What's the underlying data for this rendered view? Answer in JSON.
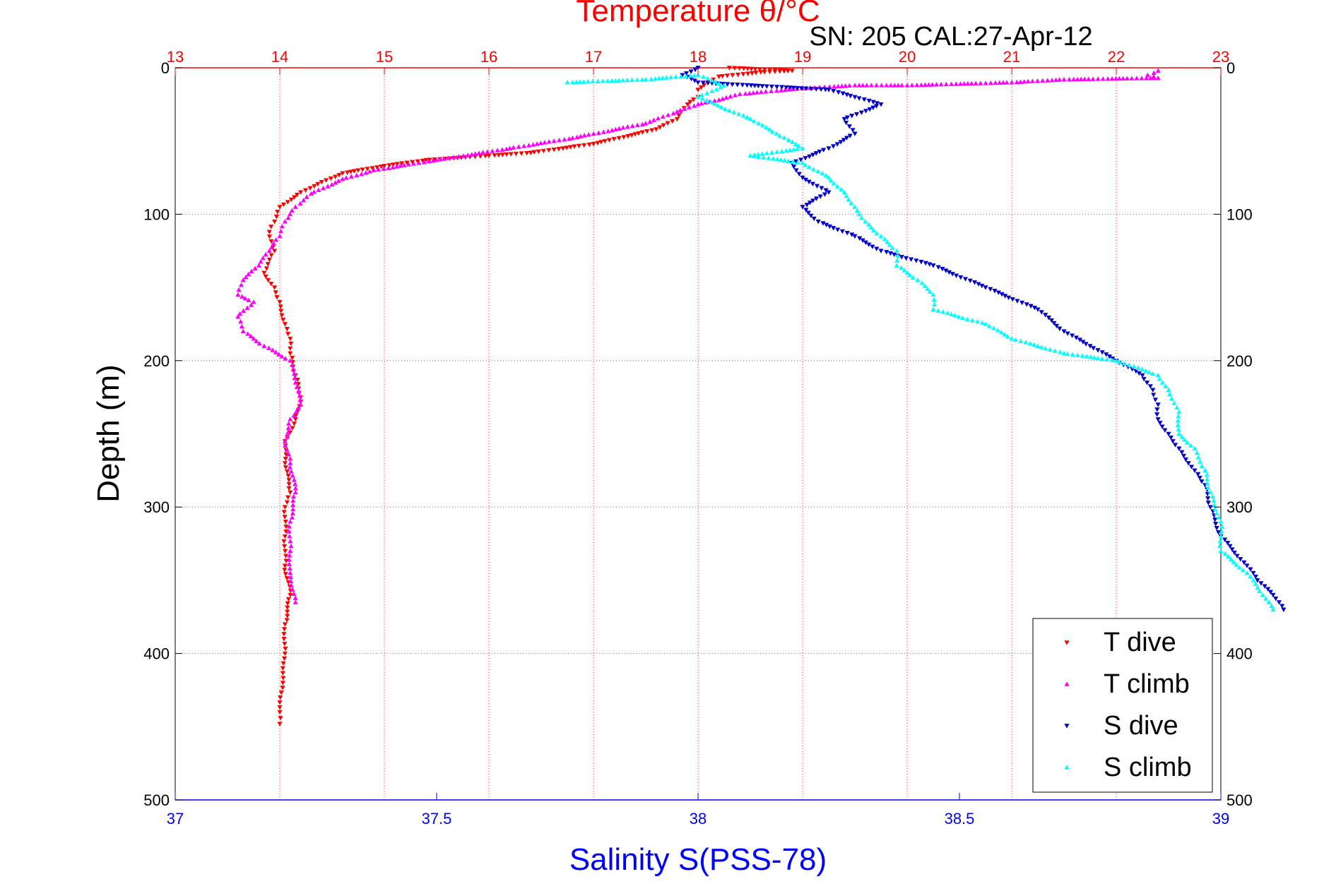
{
  "chart_data": {
    "type": "scatter",
    "title": "Temperature θ/°C",
    "subtitle": "SN: 205  CAL:27-Apr-12",
    "ylabel": "Depth (m)",
    "xlabel": "Salinity S(PSS-78)",
    "x_top_label": "Temperature θ/°C",
    "ylim": [
      0,
      500
    ],
    "y_reversed": true,
    "temp_lim": [
      13,
      23
    ],
    "sal_lim": [
      37,
      39
    ],
    "y_ticks": [
      "0",
      "100",
      "200",
      "300",
      "400",
      "500"
    ],
    "temp_ticks": [
      "13",
      "14",
      "15",
      "16",
      "17",
      "18",
      "19",
      "20",
      "21",
      "22",
      "23"
    ],
    "sal_ticks": [
      "37",
      "37.5",
      "38",
      "38.5",
      "39"
    ],
    "legend_position": "bottom-right",
    "colors": {
      "t_dive": "#ff0000",
      "t_climb": "#ff00ff",
      "s_dive": "#0000cc",
      "s_climb": "#00ffff",
      "temp_axis": "#ff0000",
      "sal_axis": "#0000ff"
    },
    "series": [
      {
        "name": "T dive",
        "axis": "temperature",
        "marker": "triangle-down",
        "color": "#ff0000",
        "points": [
          [
            18.3,
            0
          ],
          [
            18.9,
            2
          ],
          [
            18.6,
            3
          ],
          [
            18.2,
            6
          ],
          [
            18.1,
            10
          ],
          [
            18.0,
            15
          ],
          [
            18.0,
            20
          ],
          [
            17.9,
            25
          ],
          [
            17.8,
            35
          ],
          [
            17.6,
            42
          ],
          [
            17.0,
            52
          ],
          [
            16.4,
            58
          ],
          [
            16.0,
            60
          ],
          [
            15.4,
            63
          ],
          [
            15.0,
            67
          ],
          [
            14.6,
            72
          ],
          [
            14.4,
            78
          ],
          [
            14.2,
            85
          ],
          [
            14.0,
            95
          ],
          [
            13.95,
            105
          ],
          [
            13.9,
            112
          ],
          [
            13.95,
            125
          ],
          [
            13.85,
            140
          ],
          [
            13.95,
            150
          ],
          [
            14.0,
            160
          ],
          [
            14.05,
            175
          ],
          [
            14.1,
            185
          ],
          [
            14.1,
            195
          ],
          [
            14.15,
            210
          ],
          [
            14.2,
            225
          ],
          [
            14.15,
            240
          ],
          [
            14.05,
            255
          ],
          [
            14.05,
            270
          ],
          [
            14.1,
            290
          ],
          [
            14.05,
            300
          ],
          [
            14.05,
            320
          ],
          [
            14.05,
            340
          ],
          [
            14.1,
            360
          ],
          [
            14.05,
            380
          ],
          [
            14.05,
            400
          ],
          [
            14.03,
            420
          ],
          [
            14.0,
            440
          ],
          [
            14.0,
            448
          ]
        ]
      },
      {
        "name": "T climb",
        "axis": "temperature",
        "marker": "triangle-up",
        "color": "#ff00ff",
        "points": [
          [
            22.4,
            2
          ],
          [
            22.3,
            5
          ],
          [
            22.4,
            7
          ],
          [
            21.5,
            8
          ],
          [
            21.0,
            10
          ],
          [
            20.0,
            12
          ],
          [
            19.5,
            12
          ],
          [
            19.0,
            14
          ],
          [
            18.7,
            16
          ],
          [
            18.4,
            18
          ],
          [
            18.2,
            22
          ],
          [
            18.0,
            25
          ],
          [
            17.8,
            30
          ],
          [
            17.5,
            38
          ],
          [
            16.8,
            48
          ],
          [
            16.2,
            55
          ],
          [
            15.5,
            63
          ],
          [
            14.9,
            70
          ],
          [
            14.6,
            76
          ],
          [
            14.3,
            86
          ],
          [
            14.15,
            95
          ],
          [
            14.05,
            105
          ],
          [
            14.0,
            115
          ],
          [
            13.9,
            125
          ],
          [
            13.8,
            135
          ],
          [
            13.65,
            145
          ],
          [
            13.6,
            155
          ],
          [
            13.75,
            160
          ],
          [
            13.6,
            170
          ],
          [
            13.65,
            180
          ],
          [
            13.85,
            190
          ],
          [
            14.1,
            200
          ],
          [
            14.15,
            215
          ],
          [
            14.2,
            230
          ],
          [
            14.1,
            240
          ],
          [
            14.05,
            255
          ],
          [
            14.1,
            270
          ],
          [
            14.15,
            290
          ],
          [
            14.1,
            310
          ],
          [
            14.1,
            330
          ],
          [
            14.1,
            345
          ],
          [
            14.15,
            365
          ]
        ]
      },
      {
        "name": "S dive",
        "axis": "salinity",
        "marker": "triangle-down",
        "color": "#0000cc",
        "points": [
          [
            38.0,
            0
          ],
          [
            37.97,
            5
          ],
          [
            38.0,
            10
          ],
          [
            38.25,
            15
          ],
          [
            38.3,
            20
          ],
          [
            38.35,
            25
          ],
          [
            38.28,
            35
          ],
          [
            38.3,
            45
          ],
          [
            38.25,
            55
          ],
          [
            38.18,
            65
          ],
          [
            38.2,
            75
          ],
          [
            38.25,
            85
          ],
          [
            38.2,
            95
          ],
          [
            38.23,
            105
          ],
          [
            38.3,
            115
          ],
          [
            38.35,
            125
          ],
          [
            38.45,
            135
          ],
          [
            38.55,
            150
          ],
          [
            38.65,
            165
          ],
          [
            38.7,
            180
          ],
          [
            38.75,
            190
          ],
          [
            38.8,
            200
          ],
          [
            38.85,
            210
          ],
          [
            38.87,
            220
          ],
          [
            38.88,
            230
          ],
          [
            38.88,
            240
          ],
          [
            38.9,
            250
          ],
          [
            38.92,
            260
          ],
          [
            38.95,
            275
          ],
          [
            38.97,
            285
          ],
          [
            38.98,
            300
          ],
          [
            39.0,
            320
          ],
          [
            39.05,
            340
          ],
          [
            39.07,
            350
          ],
          [
            39.1,
            360
          ],
          [
            39.12,
            370
          ]
        ]
      },
      {
        "name": "S climb",
        "axis": "salinity",
        "marker": "triangle-up",
        "color": "#00ffff",
        "points": [
          [
            37.75,
            10
          ],
          [
            37.9,
            8
          ],
          [
            38.0,
            5
          ],
          [
            38.05,
            12
          ],
          [
            38.0,
            20
          ],
          [
            38.1,
            35
          ],
          [
            38.15,
            45
          ],
          [
            38.2,
            55
          ],
          [
            38.1,
            60
          ],
          [
            38.2,
            65
          ],
          [
            38.25,
            75
          ],
          [
            38.28,
            85
          ],
          [
            38.3,
            95
          ],
          [
            38.32,
            105
          ],
          [
            38.35,
            115
          ],
          [
            38.38,
            125
          ],
          [
            38.38,
            135
          ],
          [
            38.42,
            145
          ],
          [
            38.45,
            155
          ],
          [
            38.45,
            165
          ],
          [
            38.55,
            175
          ],
          [
            38.6,
            185
          ],
          [
            38.7,
            195
          ],
          [
            38.8,
            200
          ],
          [
            38.88,
            210
          ],
          [
            38.9,
            220
          ],
          [
            38.92,
            235
          ],
          [
            38.92,
            250
          ],
          [
            38.95,
            260
          ],
          [
            38.97,
            275
          ],
          [
            38.98,
            290
          ],
          [
            39.0,
            310
          ],
          [
            39.0,
            330
          ],
          [
            39.05,
            345
          ],
          [
            39.08,
            360
          ],
          [
            39.1,
            370
          ]
        ]
      }
    ]
  }
}
